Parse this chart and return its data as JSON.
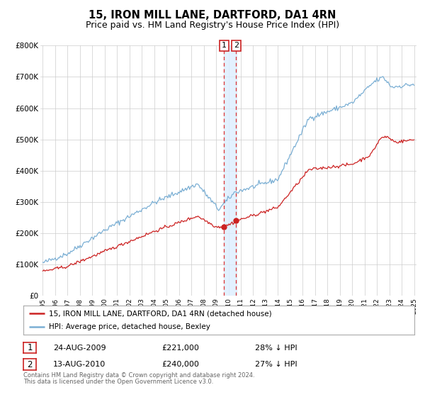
{
  "title": "15, IRON MILL LANE, DARTFORD, DA1 4RN",
  "subtitle": "Price paid vs. HM Land Registry's House Price Index (HPI)",
  "title_fontsize": 10.5,
  "subtitle_fontsize": 9,
  "ylim": [
    0,
    800000
  ],
  "yticks": [
    0,
    100000,
    200000,
    300000,
    400000,
    500000,
    600000,
    700000,
    800000
  ],
  "ytick_labels": [
    "£0",
    "£100K",
    "£200K",
    "£300K",
    "£400K",
    "£500K",
    "£600K",
    "£700K",
    "£800K"
  ],
  "hpi_color": "#7bafd4",
  "price_color": "#cc2222",
  "vline_color": "#dd3333",
  "vspan_color": "#ddeeff",
  "grid_color": "#cccccc",
  "background_color": "#ffffff",
  "legend_label_red": "15, IRON MILL LANE, DARTFORD, DA1 4RN (detached house)",
  "legend_label_blue": "HPI: Average price, detached house, Bexley",
  "transaction1_date": 2009.65,
  "transaction1_price": 221000,
  "transaction2_date": 2010.62,
  "transaction2_price": 240000,
  "table_rows": [
    {
      "num": "1",
      "date": "24-AUG-2009",
      "price": "£221,000",
      "pct": "28% ↓ HPI"
    },
    {
      "num": "2",
      "date": "13-AUG-2010",
      "price": "£240,000",
      "pct": "27% ↓ HPI"
    }
  ],
  "footnote1": "Contains HM Land Registry data © Crown copyright and database right 2024.",
  "footnote2": "This data is licensed under the Open Government Licence v3.0.",
  "xmin": 1995,
  "xmax": 2025
}
